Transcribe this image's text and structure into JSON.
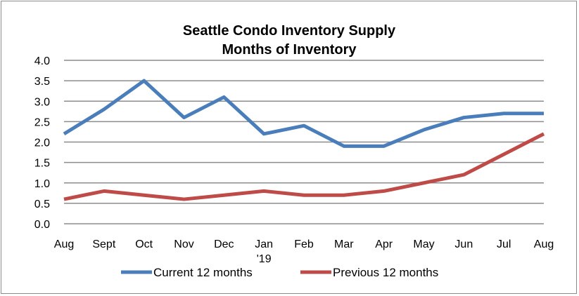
{
  "chart_data": {
    "type": "line",
    "title": "Seattle Condo Inventory Supply",
    "subtitle": "Months of Inventory",
    "categories": [
      "Aug",
      "Sept",
      "Oct",
      "Nov",
      "Dec",
      "Jan",
      "Feb",
      "Mar",
      "Apr",
      "May",
      "Jun",
      "Jul",
      "Aug"
    ],
    "category_annotations": [
      {
        "category_index": 5,
        "text": "'19"
      }
    ],
    "xlabel": "",
    "ylabel": "",
    "ylim": [
      0,
      4.0
    ],
    "yticks": [
      "0.0",
      "0.5",
      "1.0",
      "1.5",
      "2.0",
      "2.5",
      "3.0",
      "3.5",
      "4.0"
    ],
    "grid": true,
    "legend_position": "bottom",
    "series": [
      {
        "name": "Current 12 months",
        "color": "#4a7ebb",
        "values": [
          2.2,
          2.8,
          3.5,
          2.6,
          3.1,
          2.2,
          2.4,
          1.9,
          1.9,
          2.3,
          2.6,
          2.7,
          2.7
        ]
      },
      {
        "name": "Previous 12 months",
        "color": "#be4b48",
        "values": [
          0.6,
          0.8,
          0.7,
          0.6,
          0.7,
          0.8,
          0.7,
          0.7,
          0.8,
          1.0,
          1.2,
          1.7,
          2.2
        ]
      }
    ]
  }
}
